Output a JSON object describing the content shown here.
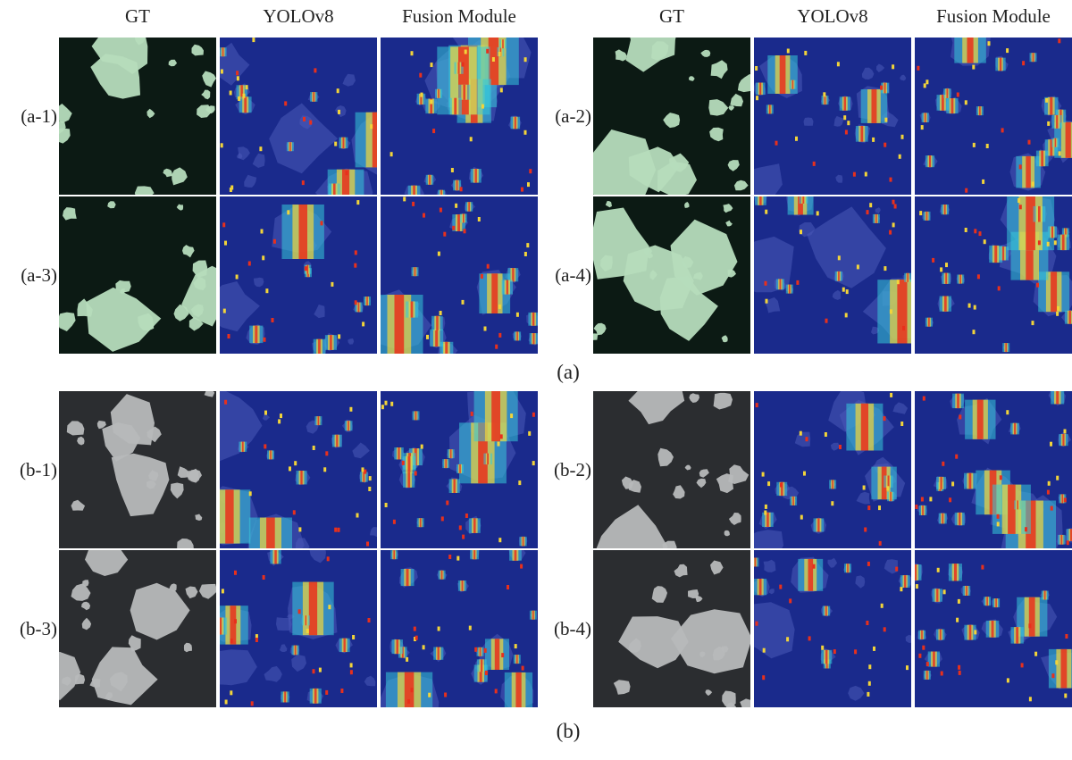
{
  "headers": {
    "left": [
      "GT",
      "YOLOv8",
      "Fusion Module"
    ],
    "right": [
      "GT",
      "YOLOv8",
      "Fusion Module"
    ]
  },
  "row_labels": [
    "(a-1)",
    "(a-2)",
    "(a-3)",
    "(a-4)",
    "(b-1)",
    "(b-2)",
    "(b-3)",
    "(b-4)"
  ],
  "section_labels": [
    "(a)",
    "(b)"
  ],
  "panel_types": [
    "GT optical image",
    "YOLOv8 heatmap",
    "Fusion Module heatmap"
  ],
  "colors": {
    "sea_a": "#0c1a14",
    "ice_a": "#b6dcbc",
    "sea_b": "#2b2d30",
    "ice_b": "#b7b9bb",
    "heat_base": "#1a2a8c",
    "heat_hot": "#e8301c",
    "heat_warm": "#f2d43a",
    "heat_cool": "#36c8d8"
  }
}
